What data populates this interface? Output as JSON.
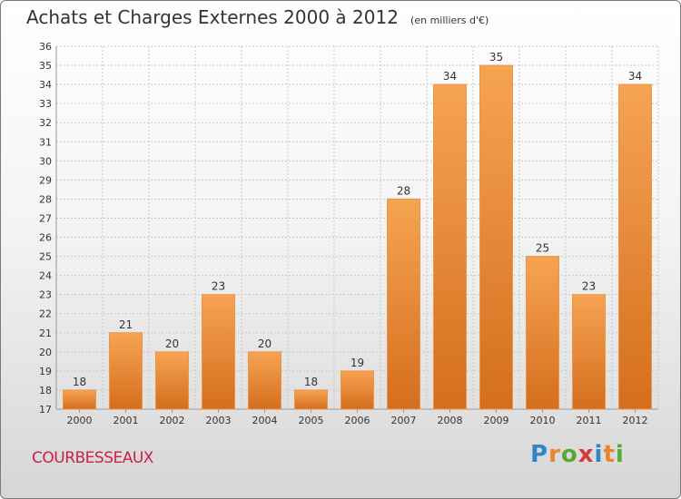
{
  "header": {
    "title": "Achats et Charges Externes 2000 à 2012",
    "unit": "(en milliers d'€)"
  },
  "footer": {
    "commune": "COURBESSEAUX",
    "logo_text": "Proxiti",
    "logo_colors": [
      "#2e86c9",
      "#e8842a",
      "#5aa83a",
      "#d83a3a",
      "#2e86c9",
      "#e8842a",
      "#5aa83a"
    ]
  },
  "colors": {
    "bar_top": "#f6a452",
    "bar_bottom": "#d46e1e",
    "bar_stroke": "#e9954a",
    "grid": "#c9c9c9",
    "axis_text": "#333333",
    "commune_text": "#c8224a"
  },
  "chart_data": {
    "type": "bar",
    "categories": [
      "2000",
      "2001",
      "2002",
      "2003",
      "2004",
      "2005",
      "2006",
      "2007",
      "2008",
      "2009",
      "2010",
      "2011",
      "2012"
    ],
    "values": [
      18,
      21,
      20,
      23,
      20,
      18,
      19,
      28,
      34,
      35,
      25,
      23,
      34
    ],
    "title": "Achats et Charges Externes 2000 à 2012",
    "xlabel": "",
    "ylabel": "",
    "ylim": [
      17,
      36
    ],
    "yticks": [
      17,
      18,
      19,
      20,
      21,
      22,
      23,
      24,
      25,
      26,
      27,
      28,
      29,
      30,
      31,
      32,
      33,
      34,
      35,
      36
    ],
    "grid": true,
    "data_labels": true
  }
}
